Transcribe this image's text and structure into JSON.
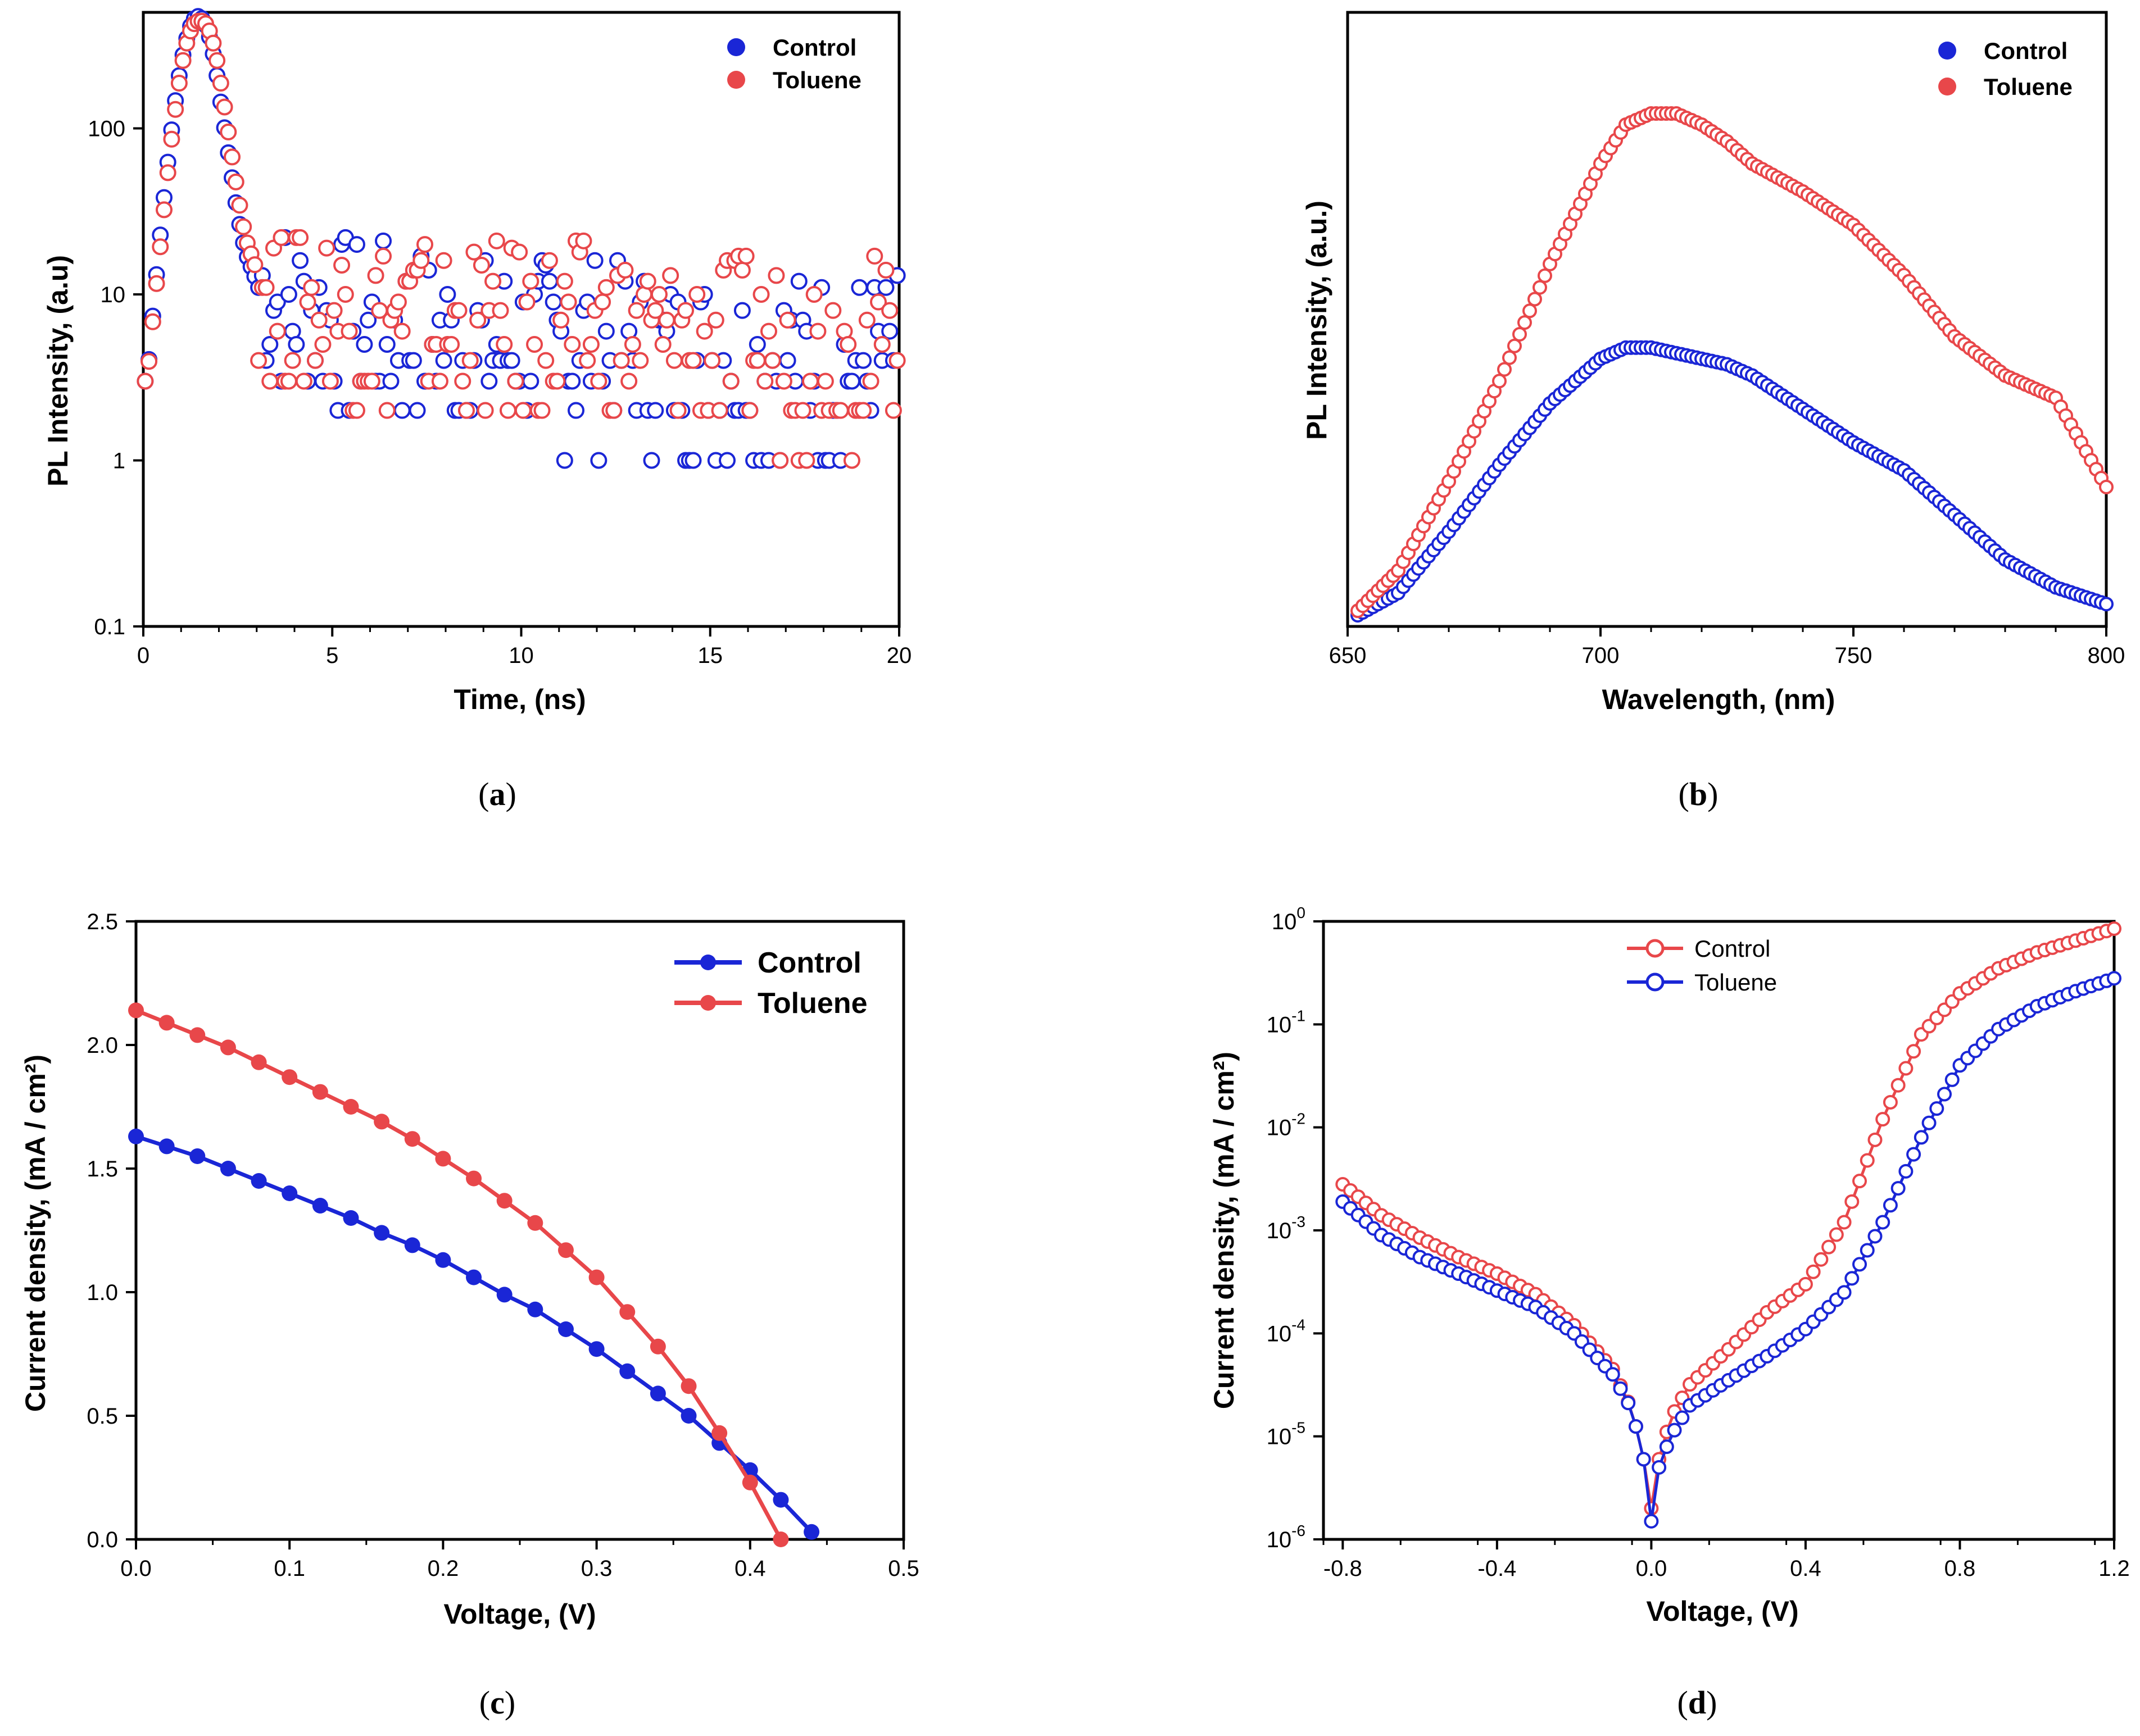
{
  "colors": {
    "blue": "#1a26d6",
    "red": "#e8474a",
    "axis": "#000000"
  },
  "chart_data": [
    {
      "id": "a",
      "type": "scatter",
      "caption": "a",
      "xlabel": "Time, (ns)",
      "ylabel": "PL Intensity, (a.u)",
      "xscale": "linear",
      "yscale": "log",
      "xlim": [
        0,
        20
      ],
      "ylim": [
        0.1,
        500
      ],
      "xticks": [
        0,
        5,
        10,
        15,
        20
      ],
      "xtick_labels": [
        "0",
        "5",
        "10",
        "15",
        "20"
      ],
      "yticks": [
        0.1,
        1,
        10,
        100
      ],
      "ytick_labels": [
        "0.1",
        "1",
        "10",
        "100"
      ],
      "legend": {
        "position": "top-right",
        "entries": [
          "Control",
          "Toluene"
        ]
      },
      "series": [
        {
          "name": "Control",
          "color": "#1a26d6",
          "description": "TRPL decay: rise to peak ~480 at 1.5 ns, fast decay to ~10 by 3 ns, then noisy counts 1–10",
          "x": [
            0.1,
            0.3,
            0.5,
            0.7,
            0.9,
            1.1,
            1.3,
            1.5,
            1.7,
            1.9,
            2.1,
            2.3,
            2.5,
            2.7,
            3.0,
            3.5,
            4,
            5,
            6,
            7,
            8,
            9,
            10,
            12,
            14,
            16,
            18,
            20
          ],
          "values": [
            3,
            10,
            30,
            80,
            180,
            320,
            450,
            480,
            400,
            250,
            120,
            60,
            30,
            18,
            12,
            9,
            8,
            7,
            6,
            6,
            5,
            5,
            5,
            5,
            4,
            4,
            4,
            4
          ]
        },
        {
          "name": "Toluene",
          "color": "#e8474a",
          "description": "TRPL decay: peak ~450 at 1.6 ns, slightly slower tail, noisy counts 1–10",
          "x": [
            0.1,
            0.3,
            0.5,
            0.7,
            0.9,
            1.1,
            1.3,
            1.5,
            1.7,
            1.9,
            2.1,
            2.3,
            2.5,
            2.7,
            3.0,
            3.5,
            4,
            5,
            6,
            7,
            8,
            9,
            10,
            12,
            14,
            16,
            18,
            20
          ],
          "values": [
            3,
            9,
            25,
            70,
            160,
            300,
            420,
            450,
            420,
            300,
            160,
            80,
            40,
            22,
            14,
            10,
            9,
            8,
            7,
            7,
            6,
            6,
            6,
            6,
            5,
            5,
            5,
            5
          ]
        }
      ]
    },
    {
      "id": "b",
      "type": "scatter",
      "caption": "b",
      "xlabel": "Wavelength, (nm)",
      "ylabel": "PL Intensity, (a.u.)",
      "xscale": "linear",
      "yscale": "arbitrary",
      "xlim": [
        650,
        800
      ],
      "ylim": [
        0,
        1
      ],
      "xticks": [
        650,
        700,
        750,
        800
      ],
      "xtick_labels": [
        "650",
        "700",
        "750",
        "800"
      ],
      "yticks": [],
      "ytick_labels": [],
      "legend": {
        "position": "top-right",
        "entries": [
          "Control",
          "Toluene"
        ]
      },
      "series": [
        {
          "name": "Control",
          "color": "#1a26d6",
          "x": [
            650,
            660,
            670,
            680,
            690,
            700,
            705,
            710,
            715,
            720,
            725,
            730,
            740,
            750,
            760,
            770,
            780,
            790,
            800
          ],
          "values": [
            0.0,
            0.05,
            0.16,
            0.28,
            0.39,
            0.47,
            0.49,
            0.49,
            0.48,
            0.47,
            0.46,
            0.44,
            0.38,
            0.32,
            0.27,
            0.19,
            0.11,
            0.06,
            0.03
          ]
        },
        {
          "name": "Toluene",
          "color": "#e8474a",
          "x": [
            650,
            660,
            670,
            680,
            690,
            700,
            705,
            710,
            715,
            720,
            725,
            730,
            740,
            750,
            760,
            770,
            780,
            790,
            800
          ],
          "values": [
            0.0,
            0.09,
            0.25,
            0.43,
            0.64,
            0.82,
            0.89,
            0.91,
            0.91,
            0.89,
            0.86,
            0.82,
            0.77,
            0.71,
            0.62,
            0.51,
            0.44,
            0.4,
            0.24
          ]
        }
      ]
    },
    {
      "id": "c",
      "type": "line",
      "caption": "c",
      "xlabel": "Voltage, (V)",
      "ylabel": "Current density, (mA / cm²)",
      "xscale": "linear",
      "yscale": "linear",
      "xlim": [
        0,
        0.5
      ],
      "ylim": [
        0,
        2.5
      ],
      "xticks": [
        0,
        0.1,
        0.2,
        0.3,
        0.4,
        0.5
      ],
      "xtick_labels": [
        "0.0",
        "0.1",
        "0.2",
        "0.3",
        "0.4",
        "0.5"
      ],
      "yticks": [
        0,
        0.5,
        1.0,
        1.5,
        2.0,
        2.5
      ],
      "ytick_labels": [
        "0.0",
        "0.5",
        "1.0",
        "1.5",
        "2.0",
        "2.5"
      ],
      "legend": {
        "position": "top-right",
        "entries": [
          "Control",
          "Toluene"
        ]
      },
      "series": [
        {
          "name": "Control",
          "color": "#1a26d6",
          "x": [
            0,
            0.02,
            0.04,
            0.06,
            0.08,
            0.1,
            0.12,
            0.14,
            0.16,
            0.18,
            0.2,
            0.22,
            0.24,
            0.26,
            0.28,
            0.3,
            0.32,
            0.34,
            0.36,
            0.38,
            0.4,
            0.42,
            0.44
          ],
          "values": [
            1.63,
            1.59,
            1.55,
            1.5,
            1.45,
            1.4,
            1.35,
            1.3,
            1.24,
            1.19,
            1.13,
            1.06,
            0.99,
            0.93,
            0.85,
            0.77,
            0.68,
            0.59,
            0.5,
            0.39,
            0.28,
            0.16,
            0.03
          ]
        },
        {
          "name": "Toluene",
          "color": "#e8474a",
          "x": [
            0,
            0.02,
            0.04,
            0.06,
            0.08,
            0.1,
            0.12,
            0.14,
            0.16,
            0.18,
            0.2,
            0.22,
            0.24,
            0.26,
            0.28,
            0.3,
            0.32,
            0.34,
            0.36,
            0.38,
            0.4,
            0.42
          ],
          "values": [
            2.14,
            2.09,
            2.04,
            1.99,
            1.93,
            1.87,
            1.81,
            1.75,
            1.69,
            1.62,
            1.54,
            1.46,
            1.37,
            1.28,
            1.17,
            1.06,
            0.92,
            0.78,
            0.62,
            0.43,
            0.23,
            0.0
          ]
        }
      ]
    },
    {
      "id": "d",
      "type": "scatter",
      "caption": "d",
      "xlabel": "Voltage, (V)",
      "ylabel": "Current density, (mA / cm²)",
      "xscale": "linear",
      "yscale": "log",
      "xlim": [
        -0.85,
        1.2
      ],
      "ylim": [
        1e-06,
        1
      ],
      "xticks": [
        -0.8,
        -0.4,
        0.0,
        0.4,
        0.8,
        1.2
      ],
      "xtick_labels": [
        "-0.8",
        "-0.4",
        "0.0",
        "0.4",
        "0.8",
        "1.2"
      ],
      "yticks": [
        1e-06,
        1e-05,
        0.0001,
        0.001,
        0.01,
        0.1,
        1
      ],
      "ytick_labels": [
        [
          "10",
          "-6"
        ],
        [
          "10",
          "-5"
        ],
        [
          "10",
          "-4"
        ],
        [
          "10",
          "-3"
        ],
        [
          "10",
          "-2"
        ],
        [
          "10",
          "-1"
        ],
        [
          "10",
          "0"
        ]
      ],
      "legend": {
        "position": "top-center",
        "entries": [
          "Control",
          "Toluene"
        ]
      },
      "series": [
        {
          "name": "Control",
          "color": "#e8474a",
          "x": [
            -0.8,
            -0.7,
            -0.6,
            -0.5,
            -0.4,
            -0.3,
            -0.2,
            -0.1,
            -0.05,
            -0.02,
            0.0,
            0.02,
            0.05,
            0.1,
            0.2,
            0.3,
            0.4,
            0.5,
            0.6,
            0.7,
            0.8,
            0.9,
            1.0,
            1.1,
            1.2
          ],
          "values": [
            0.0028,
            0.0014,
            0.00085,
            0.00055,
            0.00038,
            0.00024,
            0.00012,
            4.5e-05,
            1.8e-05,
            6e-06,
            2e-06,
            6e-06,
            1.5e-05,
            3.2e-05,
            7e-05,
            0.00016,
            0.0003,
            0.0012,
            0.012,
            0.08,
            0.2,
            0.35,
            0.5,
            0.65,
            0.85
          ]
        },
        {
          "name": "Toluene",
          "color": "#1a26d6",
          "x": [
            -0.8,
            -0.7,
            -0.6,
            -0.5,
            -0.4,
            -0.3,
            -0.2,
            -0.1,
            -0.05,
            -0.02,
            0.0,
            0.02,
            0.05,
            0.1,
            0.2,
            0.3,
            0.4,
            0.5,
            0.6,
            0.7,
            0.8,
            0.9,
            1.0,
            1.1,
            1.2
          ],
          "values": [
            0.0019,
            0.0009,
            0.00055,
            0.00038,
            0.00026,
            0.00018,
            0.0001,
            4e-05,
            1.8e-05,
            6e-06,
            1.5e-06,
            5e-06,
            1e-05,
            2e-05,
            3.5e-05,
            6e-05,
            0.00011,
            0.00025,
            0.0012,
            0.008,
            0.04,
            0.09,
            0.15,
            0.21,
            0.28
          ]
        }
      ]
    }
  ]
}
